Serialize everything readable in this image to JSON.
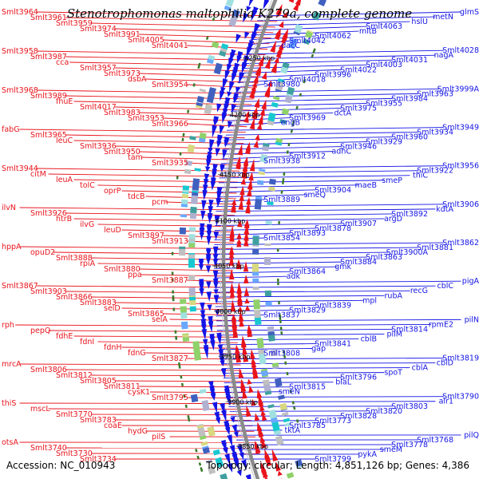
{
  "title": "Stenotrophomonas maltophilia K279a, complete genome",
  "accession": "Accession: NC_010943",
  "topology": "Topology: circular; Length: 4,851,126 bp; Genes: 4,386",
  "colors": {
    "forward": "#e8141c",
    "reverse": "#1414e6",
    "backbone": "#8a8a8a",
    "tick": "#3a7a2a"
  },
  "position_ticks": [
    "3850 kbp",
    "3900 kbp",
    "3950 kbp",
    "4000 kbp",
    "4050 kbp",
    "4100 kbp",
    "4150 kbp",
    "4200 kbp",
    "4250 kbp"
  ],
  "forward_labels": [
    "Smlt3964",
    "Smlt3961",
    "Smlt3959",
    "Smlt3974",
    "Smlt3991",
    "Smlt4005",
    "Smlt4041",
    "Smlt3958",
    "Smlt3987",
    "cca",
    "Smlt3957",
    "Smlt3973",
    "dsbA",
    "Smlt3954",
    "Smlt3968",
    "Smlt3989",
    "fhuE",
    "Smlt4017",
    "Smlt3983",
    "Smlt3953",
    "Smlt3966",
    "fabG",
    "Smlt3965",
    "leuC",
    "Smlt3936",
    "Smlt3950",
    "tam",
    "Smlt3935",
    "Smlt3944",
    "citM",
    "leuA",
    "tolC",
    "oprP",
    "tdcB",
    "pcm",
    "ilvN",
    "Smlt3926",
    "htrB",
    "ilvG",
    "leuD",
    "Smlt3897",
    "Smlt3913",
    "hppA",
    "opuD2",
    "Smlt3888",
    "rpiA",
    "Smlt3880",
    "ppa",
    "Smlt3887",
    "Smlt3867",
    "Smlt3903",
    "Smlt3866",
    "Smlt3883",
    "selD",
    "Smlt3865",
    "selA",
    "rph",
    "pepQ",
    "fdhE",
    "fdnI",
    "fdnH",
    "fdnG",
    "Smlt3827",
    "mrcA",
    "Smlt3806",
    "Smlt3812",
    "Smlt3805",
    "Smlt3811",
    "cysK1",
    "Smlt3795",
    "thiS",
    "mscL",
    "Smlt3770",
    "Smlt3783",
    "coaE",
    "hydG",
    "pilS",
    "otsA",
    "Smlt3740",
    "Smlt3730",
    "Smlt3734"
  ],
  "reverse_labels": [
    "glmS",
    "metN",
    "hslU",
    "Smlt4063",
    "mltB",
    "Smlt4062",
    "Smlt4042",
    "dacC",
    "Smlt4028",
    "nagA",
    "Smlt4031",
    "Smlt4003",
    "Smlt4022",
    "Smlt3996",
    "Smlt4018",
    "Smlt3980",
    "Smlt3999A",
    "Smlt3963",
    "Smlt3984",
    "Smlt3955",
    "Smlt3975",
    "dctA",
    "Smlt3969",
    "engB",
    "Smlt3949",
    "Smlt3934",
    "Smlt3960",
    "Smlt3929",
    "Smlt3946",
    "adhC",
    "Smlt3912",
    "Smlt3938",
    "Smlt3956",
    "Smlt3922",
    "thiC",
    "smeP",
    "maeB",
    "Smlt3904",
    "smeQ",
    "Smlt3889",
    "Smlt3906",
    "kdtA",
    "Smlt3892",
    "argD",
    "Smlt3907",
    "Smlt3878",
    "Smlt3893",
    "Smlt3854",
    "Smlt3862",
    "Smlt3881",
    "Smlt3900A",
    "Smlt3863",
    "Smlt3884",
    "gmk",
    "Smlt3864",
    "adk",
    "pigA",
    "cblC",
    "recG",
    "rubA",
    "mpl",
    "Smlt3839",
    "Smlt3829",
    "Smlt3837",
    "pilN",
    "rpmE2",
    "Smlt3814",
    "pilM",
    "cblB",
    "Smlt3841",
    "gap",
    "Smlt3808",
    "Smlt3819",
    "cblD",
    "cblA",
    "spoT",
    "Smlt3796",
    "blaL",
    "Smlt3815",
    "smeN",
    "Smlt3790",
    "alr1",
    "Smlt3803",
    "Smlt3820",
    "Smlt3828",
    "Smlt3773",
    "Smlt3785",
    "tktA",
    "pilQ",
    "Smlt3768",
    "Smlt3778",
    "smeM",
    "pykA",
    "Smlt3799"
  ]
}
